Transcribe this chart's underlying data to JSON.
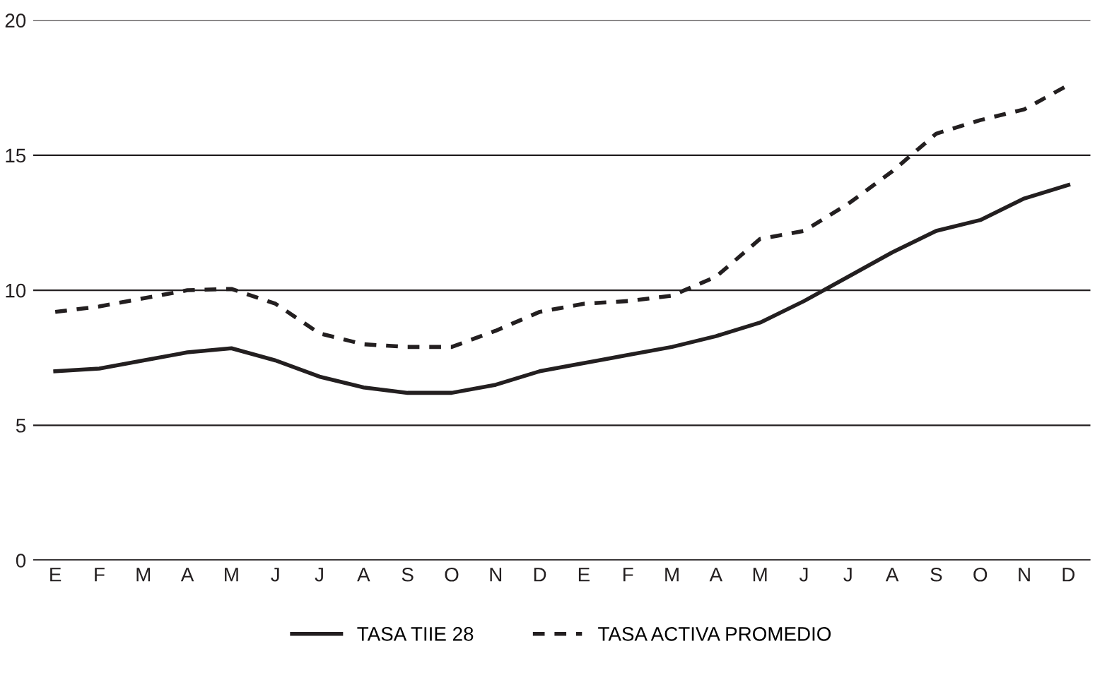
{
  "chart_data": {
    "type": "line",
    "categories": [
      "E",
      "F",
      "M",
      "A",
      "M",
      "J",
      "J",
      "A",
      "S",
      "O",
      "N",
      "D",
      "E",
      "F",
      "M",
      "A",
      "M",
      "J",
      "J",
      "A",
      "S",
      "O",
      "N",
      "D"
    ],
    "series": [
      {
        "name": "TASA TIIE 28",
        "color": "#231f20",
        "line_style": "solid",
        "values": [
          7.0,
          7.1,
          7.4,
          7.7,
          7.85,
          7.4,
          6.8,
          6.4,
          6.2,
          6.2,
          6.5,
          7.0,
          7.3,
          7.6,
          7.9,
          8.3,
          8.8,
          9.6,
          10.5,
          11.4,
          12.2,
          12.6,
          13.4,
          13.9
        ]
      },
      {
        "name": "TASA ACTIVA PROMEDIO",
        "color": "#231f20",
        "line_style": "dashed",
        "values": [
          9.2,
          9.4,
          9.7,
          10.0,
          10.05,
          9.5,
          8.4,
          8.0,
          7.9,
          7.9,
          8.5,
          9.2,
          9.5,
          9.6,
          9.8,
          10.5,
          11.9,
          12.2,
          13.2,
          14.4,
          15.8,
          16.3,
          16.7,
          17.6
        ]
      }
    ],
    "ylim": [
      0,
      20
    ],
    "yticks": [
      0,
      5,
      10,
      15,
      20
    ],
    "grid": "y",
    "legend": "bottom",
    "marker": "none"
  }
}
